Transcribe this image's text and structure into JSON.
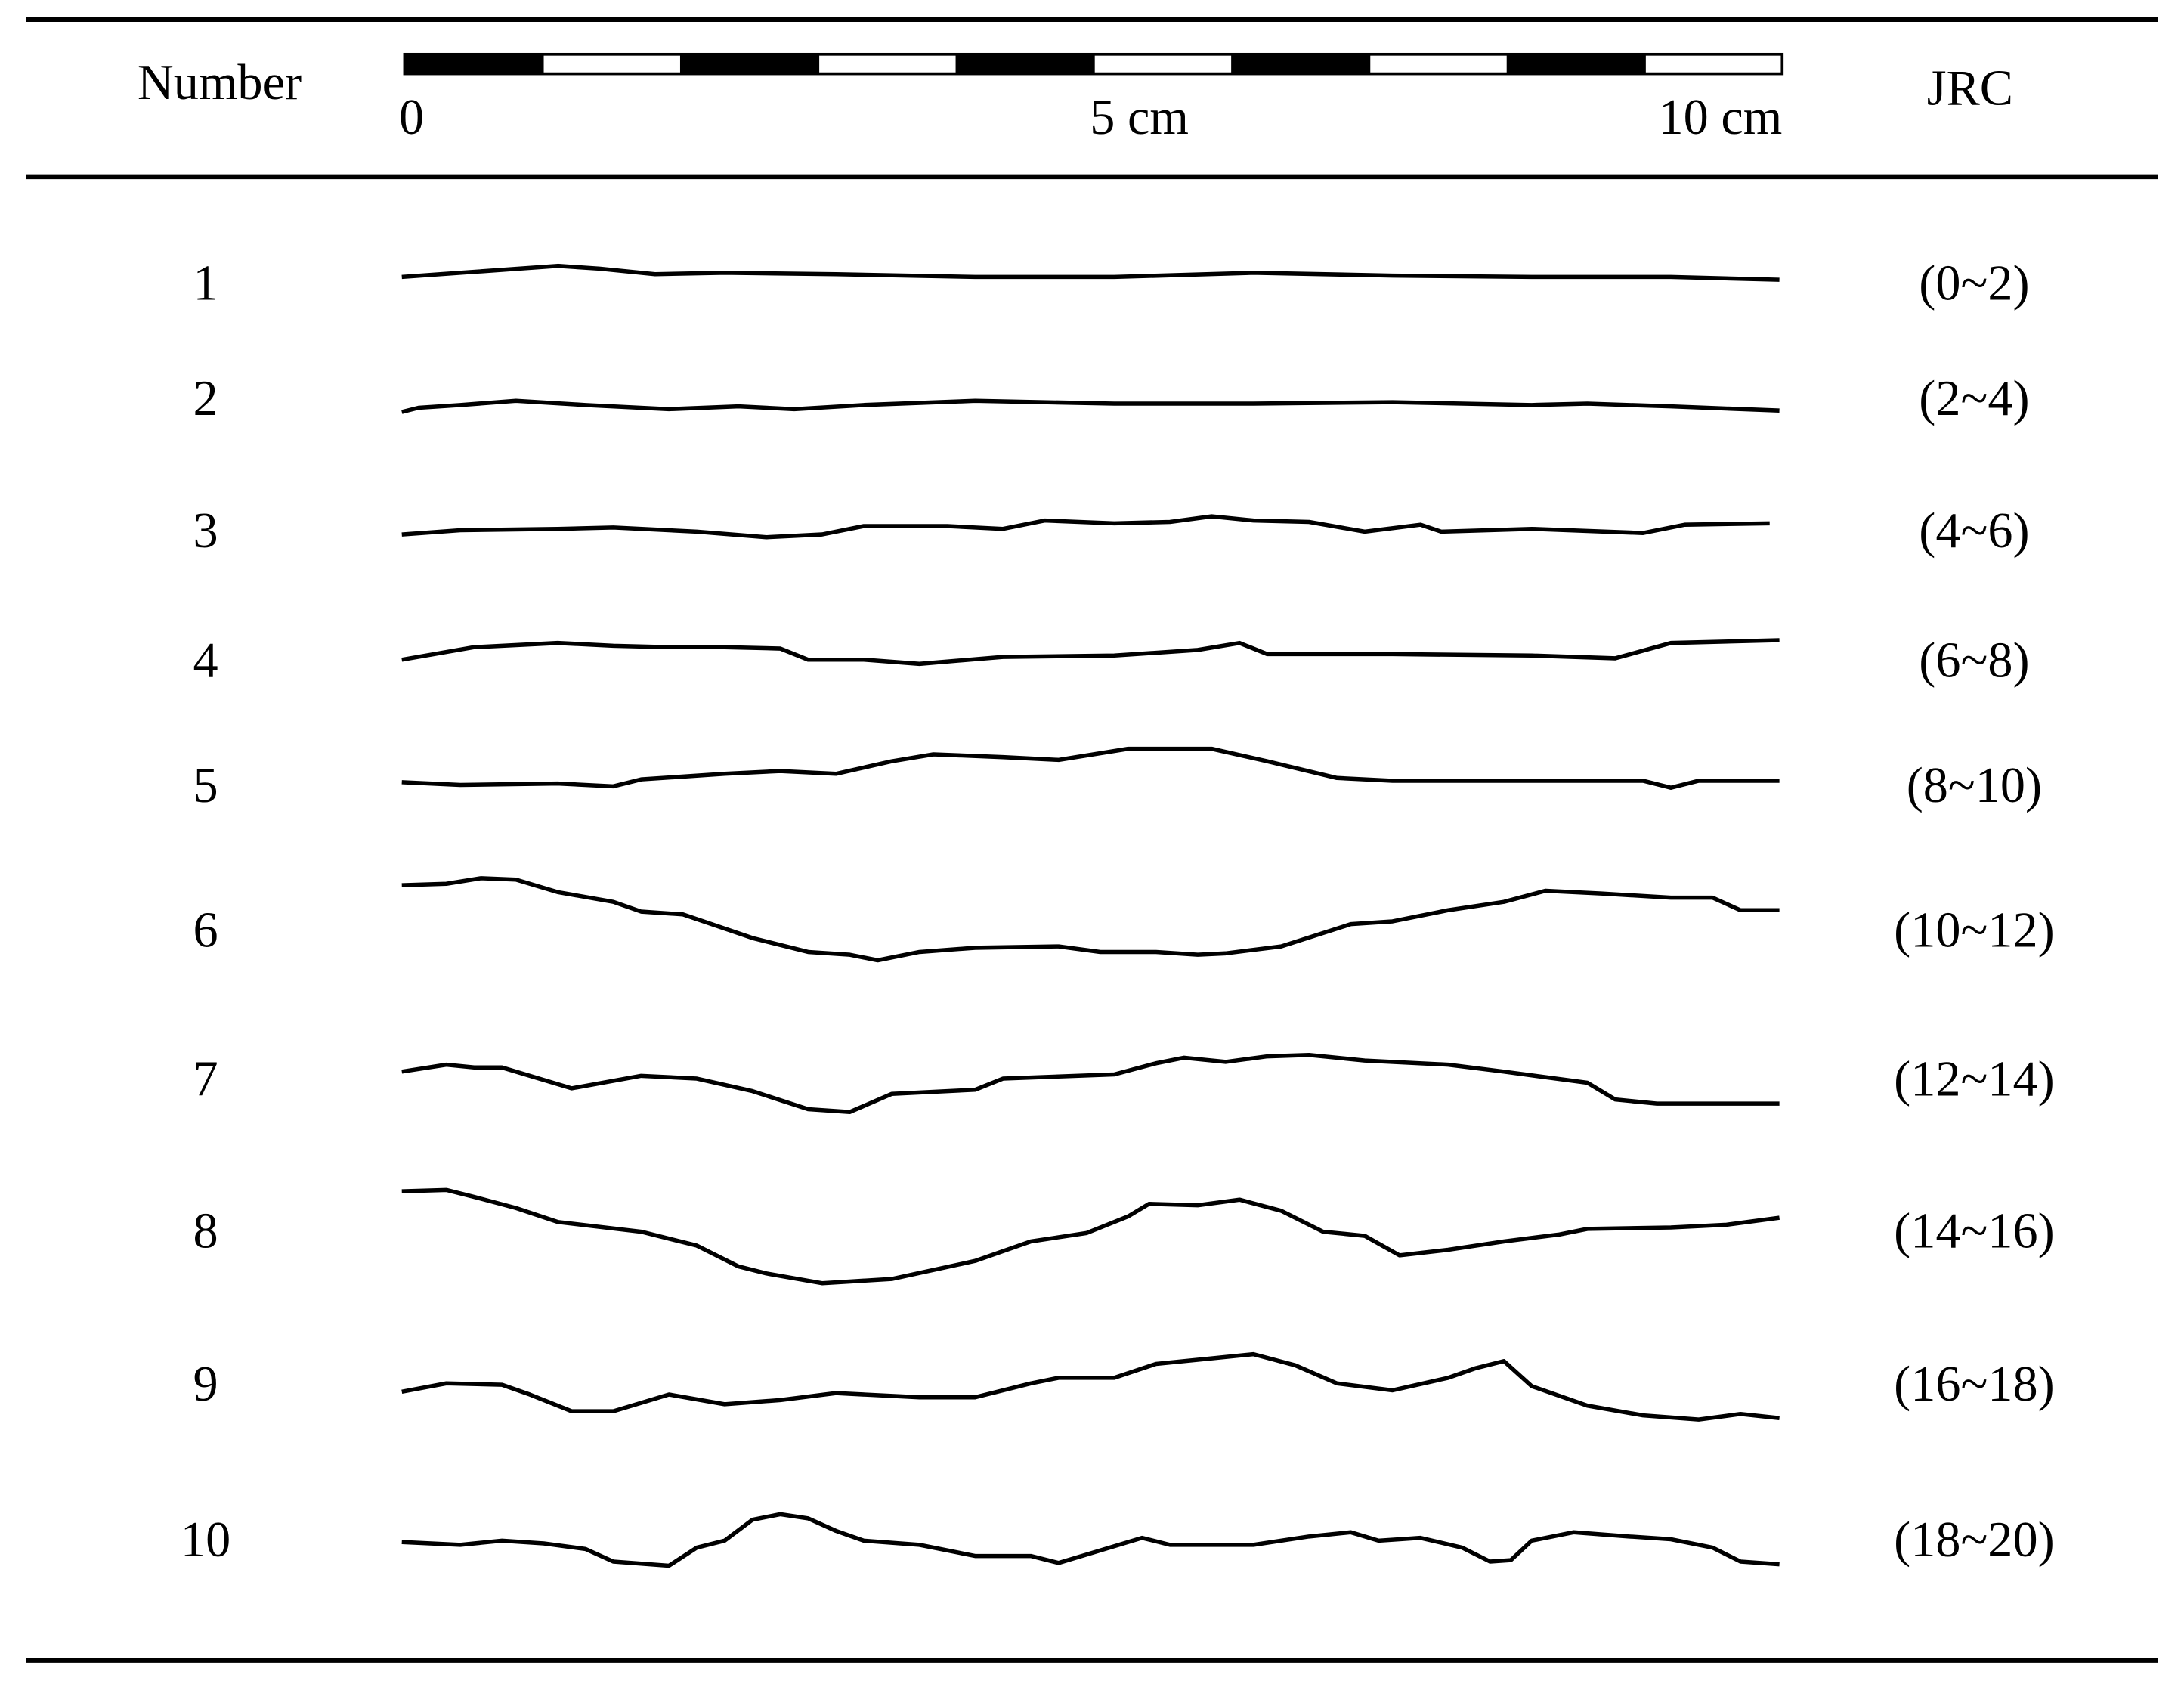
{
  "header": {
    "number_label": "Number",
    "jrc_label": "JRC",
    "scale_labels": [
      "0",
      "5 cm",
      "10 cm"
    ]
  },
  "rows": [
    {
      "number": 1,
      "jrc": "(0~2)"
    },
    {
      "number": 2,
      "jrc": "(2~4)"
    },
    {
      "number": 3,
      "jrc": "(4~6)"
    },
    {
      "number": 4,
      "jrc": "(6~8)"
    },
    {
      "number": 5,
      "jrc": "(8~10)"
    },
    {
      "number": 6,
      "jrc": "(10~12)"
    },
    {
      "number": 7,
      "jrc": "(12~14)"
    },
    {
      "number": 8,
      "jrc": "(14~16)"
    },
    {
      "number": 9,
      "jrc": "(16~18)"
    },
    {
      "number": 10,
      "jrc": "(18~20)"
    }
  ]
}
